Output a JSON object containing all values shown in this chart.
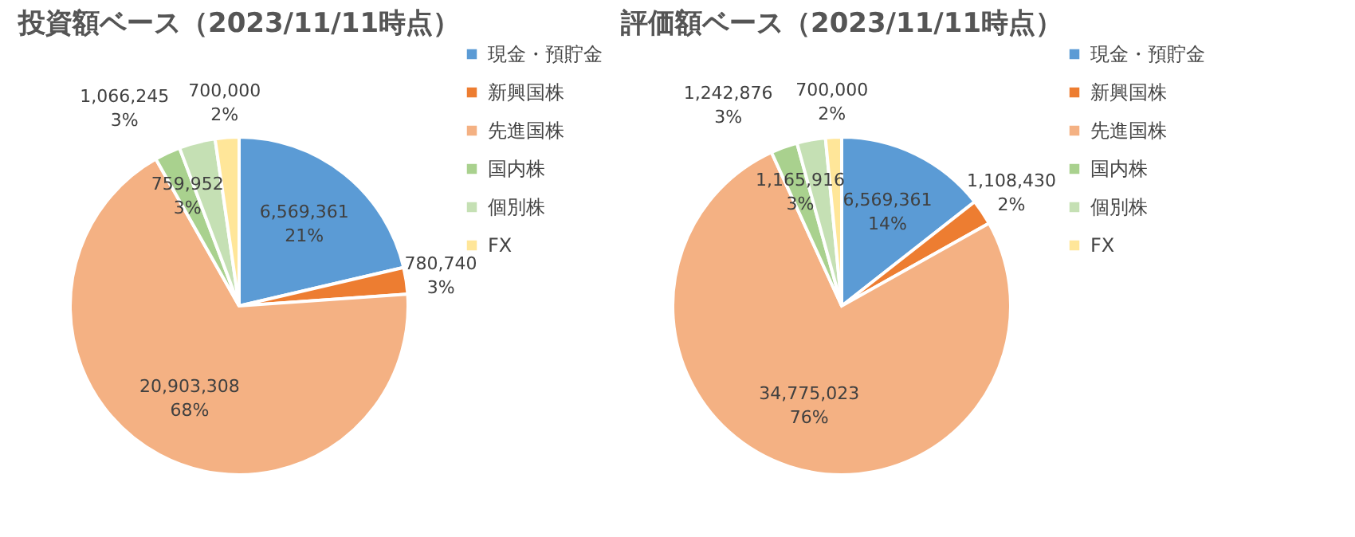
{
  "chart_data": [
    {
      "type": "pie",
      "title": "投資額ベース（2023/11/11時点）",
      "legend": "right",
      "categories": [
        "現金・預貯金",
        "新興国株",
        "先進国株",
        "国内株",
        "個別株",
        "FX"
      ],
      "values": [
        6569361,
        780740,
        20903308,
        759952,
        1066245,
        700000
      ],
      "value_labels": [
        "6,569,361\n21%",
        "780,740\n3%",
        "20,903,308\n68%",
        "759,952\n3%",
        "1,066,245\n3%",
        "700,000\n2%"
      ],
      "colors": [
        "#5b9bd5",
        "#ed7d31",
        "#f4b183",
        "#a9d18e",
        "#c5e0b4",
        "#ffe699"
      ]
    },
    {
      "type": "pie",
      "title": "評価額ベース（2023/11/11時点）",
      "legend": "right",
      "categories": [
        "現金・預貯金",
        "新興国株",
        "先進国株",
        "国内株",
        "個別株",
        "FX"
      ],
      "values": [
        6569361,
        1108430,
        34775023,
        1165916,
        1242876,
        700000
      ],
      "value_labels": [
        "6,569,361\n14%",
        "1,108,430\n2%",
        "34,775,023\n76%",
        "1,165,916\n3%",
        "1,242,876\n3%",
        "700,000\n2%"
      ],
      "colors": [
        "#5b9bd5",
        "#ed7d31",
        "#f4b183",
        "#a9d18e",
        "#c5e0b4",
        "#ffe699"
      ]
    }
  ]
}
